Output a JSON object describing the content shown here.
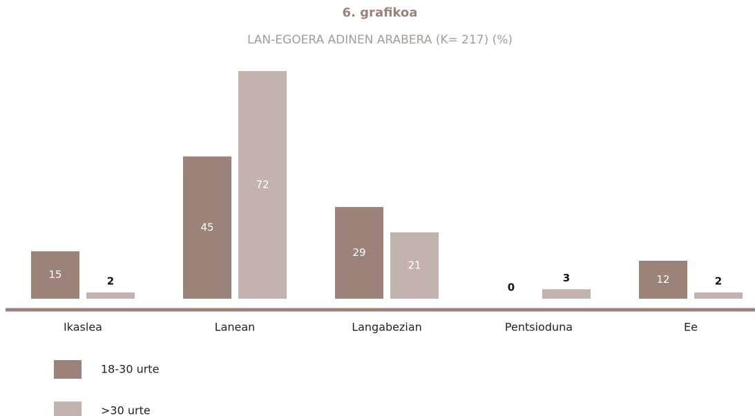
{
  "chart_data": {
    "type": "bar",
    "title": "6. grafikoa",
    "subtitle": "LAN-EGOERA ADINEN ARABERA (K= 217) (%)",
    "categories": [
      "Ikaslea",
      "Lanean",
      "Langabezian",
      "Pentsioduna",
      "Ee"
    ],
    "series": [
      {
        "name": "18-30 urte",
        "color": "#9b827b",
        "values": [
          15,
          45,
          29,
          0,
          12
        ]
      },
      {
        "name": ">30 urte",
        "color": "#c2b3af",
        "values": [
          2,
          72,
          21,
          3,
          2
        ]
      }
    ]
  }
}
